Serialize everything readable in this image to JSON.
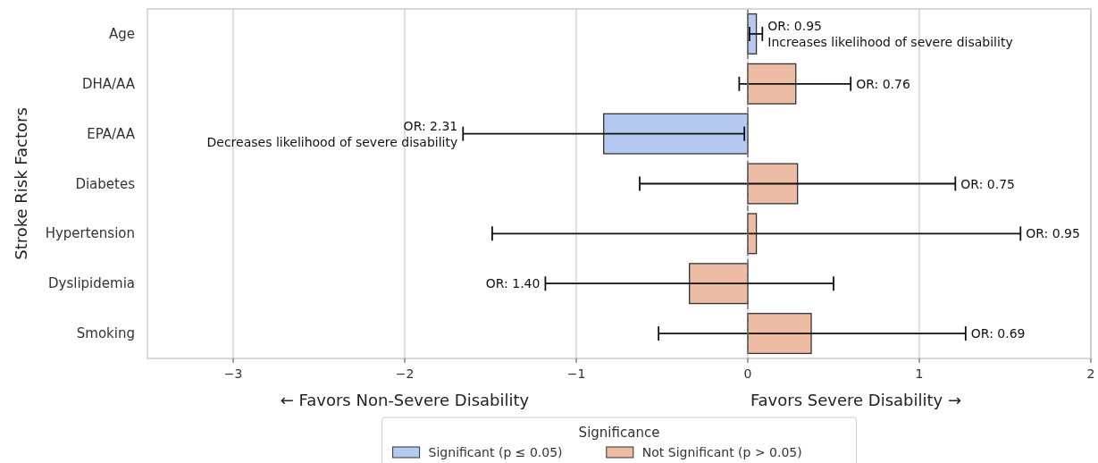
{
  "chart_data": {
    "type": "bar",
    "orientation": "horizontal",
    "ylabel": "Stroke Risk Factors",
    "xlabel": "← Favors Non-Severe Disability",
    "categories": [
      "Age",
      "DHA/AA",
      "EPA/AA",
      "Diabetes",
      "Hypertension",
      "Dyslipidemia",
      "Smoking"
    ],
    "series": [
      {
        "name": "Significant (p ≤ 0.05)",
        "color": "#b5c9f1",
        "values": [
          0.05,
          null,
          -0.84,
          null,
          null,
          null,
          null
        ],
        "errors": [
          [
            0.01,
            0.085
          ],
          null,
          [
            -1.66,
            -0.02
          ],
          null,
          null,
          null,
          null
        ]
      },
      {
        "name": "Not Significant (p > 0.05)",
        "color": "#edbca5",
        "values": [
          null,
          0.28,
          null,
          0.29,
          0.05,
          -0.34,
          0.37
        ],
        "errors": [
          null,
          [
            -0.05,
            0.6
          ],
          null,
          [
            -0.63,
            1.21
          ],
          [
            -1.49,
            1.59
          ],
          [
            -1.18,
            0.5
          ],
          [
            -0.52,
            1.27
          ]
        ]
      }
    ],
    "xlim": [
      -3.5,
      2
    ],
    "xticks": [
      -3,
      -2,
      -1,
      0,
      1,
      2
    ],
    "grid": "x",
    "legend": "bottom",
    "legend_title": "Significance",
    "ref_lines": [
      {
        "axis": "x",
        "value": 0,
        "color": "#777777",
        "line_style": "dashed"
      }
    ],
    "annotations": [
      {
        "text": "OR: 0.95\nIncreases likelihood of severe disability",
        "x": 0.085,
        "y": "Age"
      },
      {
        "text": "OR: 0.76",
        "x": 0.6,
        "y": "DHA/AA"
      },
      {
        "text": "OR: 2.31\nDecreases likelihood of severe disability",
        "x": -1.66,
        "y": "EPA/AA"
      },
      {
        "text": "OR: 0.75",
        "x": 1.21,
        "y": "Diabetes"
      },
      {
        "text": "OR: 0.95",
        "x": 1.59,
        "y": "Hypertension"
      },
      {
        "text": "OR: 1.40",
        "x": -1.18,
        "y": "Dyslipidemia"
      },
      {
        "text": "OR: 0.69",
        "x": 1.27,
        "y": "Smoking"
      },
      "Favors Severe Disability →"
    ]
  }
}
